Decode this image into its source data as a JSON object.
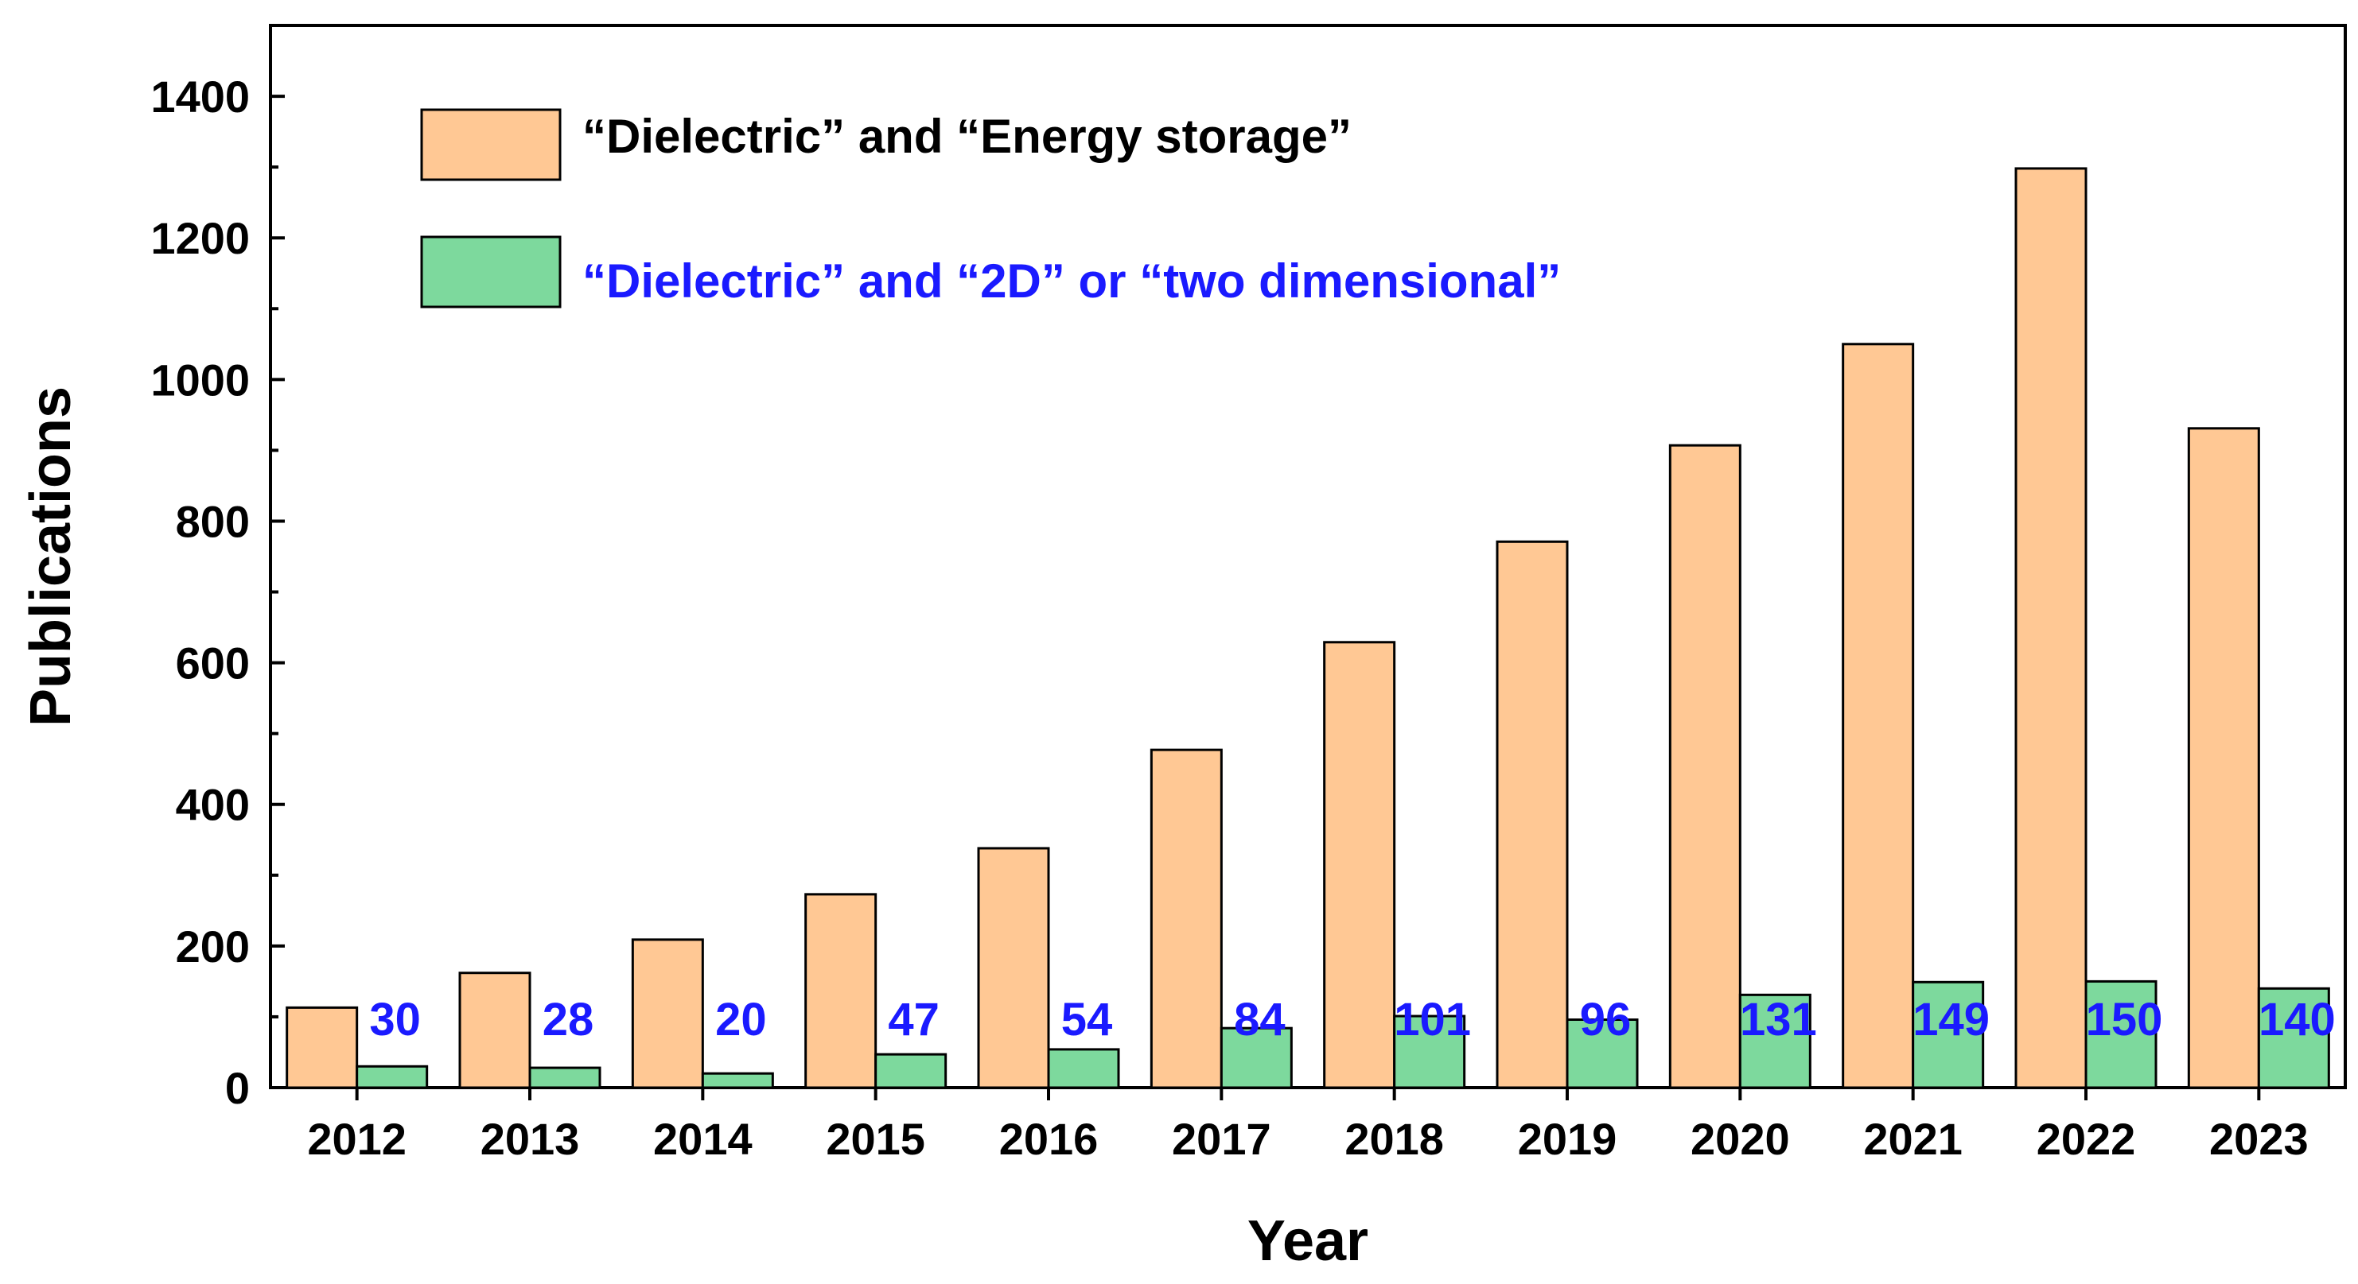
{
  "chart_data": {
    "type": "bar",
    "categories": [
      "2012",
      "2013",
      "2014",
      "2015",
      "2016",
      "2017",
      "2018",
      "2019",
      "2020",
      "2021",
      "2022",
      "2023"
    ],
    "series": [
      {
        "name": "“Dielectric” and “Energy storage”",
        "values": [
          113,
          162,
          209,
          273,
          338,
          477,
          629,
          771,
          907,
          1050,
          1298,
          931
        ],
        "color": "#ffc894",
        "text_color": "#000000",
        "show_labels": false
      },
      {
        "name": "“Dielectric” and “2D” or “two dimensional”",
        "values": [
          30,
          28,
          20,
          47,
          54,
          84,
          101,
          96,
          131,
          149,
          150,
          140
        ],
        "color": "#7dd99d",
        "text_color": "#1a1aff",
        "show_labels": true
      }
    ],
    "data_labels": [
      "30",
      "28",
      "20",
      "47",
      "54",
      "84",
      "101",
      "96",
      "131",
      "149",
      "150",
      "140"
    ],
    "xlabel": "Year",
    "ylabel": "Publications",
    "ylim": [
      0,
      1500
    ],
    "yticks": [
      0,
      200,
      400,
      600,
      800,
      1000,
      1200,
      1400
    ],
    "ytick_labels": [
      "0",
      "200",
      "400",
      "600",
      "800",
      "1000",
      "1200",
      "1400"
    ],
    "legend_position": "top-left",
    "grid": false
  }
}
